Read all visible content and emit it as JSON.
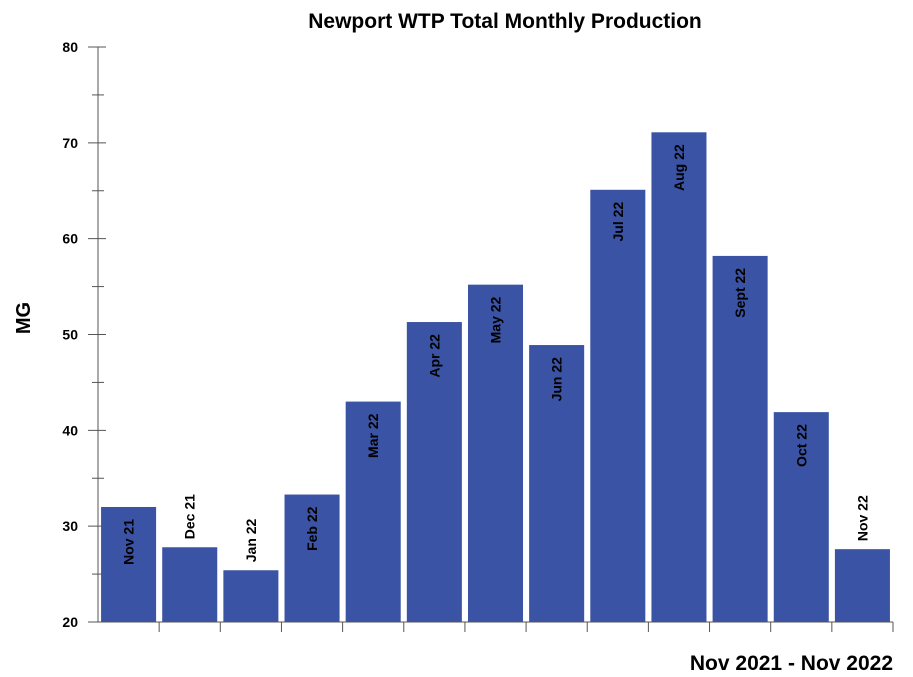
{
  "chart_data": {
    "type": "bar",
    "title": "Newport WTP Total Monthly Production",
    "y_label": "MG",
    "x_label": "Nov 2021 - Nov 2022",
    "categories": [
      "Nov 21",
      "Dec 21",
      "Jan 22",
      "Feb 22",
      "Mar 22",
      "Apr 22",
      "May 22",
      "Jun 22",
      "Jul 22",
      "Aug 22",
      "Sept 22",
      "Oct 22",
      "Nov 22"
    ],
    "values": [
      32.0,
      27.8,
      25.4,
      33.3,
      43.0,
      51.3,
      55.2,
      48.9,
      65.1,
      71.1,
      58.2,
      41.9,
      27.6
    ],
    "color": "#3a53a4",
    "ylim": [
      20,
      80
    ],
    "yticks": [
      20,
      30,
      40,
      50,
      60,
      70,
      80
    ],
    "yminorticks": [
      25,
      35,
      45,
      55,
      65,
      75
    ],
    "grid": false
  }
}
